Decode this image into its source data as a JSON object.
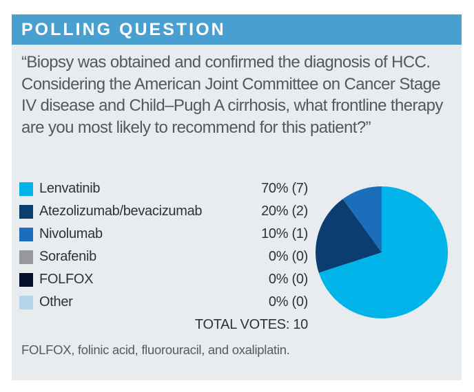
{
  "header": {
    "title": "POLLING QUESTION"
  },
  "question": "“Biopsy was obtained and confirmed the diagnosis of HCC. Considering the American Joint Committee on Cancer Stage IV disease and Child–Pugh A cirrhosis, what frontline therapy are you most likely to recommend for this patient?”",
  "legend": {
    "items": [
      {
        "label": "Lenvatinib",
        "value": "70% (7)",
        "color": "#00b3e8"
      },
      {
        "label": "Atezolizumab/bevacizumab",
        "value": "20% (2)",
        "color": "#0b3d70"
      },
      {
        "label": "Nivolumab",
        "value": "10% (1)",
        "color": "#1b6fba"
      },
      {
        "label": "Sorafenib",
        "value": "0% (0)",
        "color": "#96989b"
      },
      {
        "label": "FOLFOX",
        "value": "0% (0)",
        "color": "#05102e"
      },
      {
        "label": "Other",
        "value": "0% (0)",
        "color": "#b3d6e9"
      }
    ],
    "total_label": "TOTAL VOTES: 10"
  },
  "footnote": "FOLFOX, folinic acid, fluorouracil, and oxaliplatin.",
  "colors": {
    "header_bg": "#4a9fd1",
    "card_bg": "#e8ecef",
    "question_text": "#56575b"
  },
  "chart_data": {
    "type": "pie",
    "title": "POLLING QUESTION",
    "categories": [
      "Lenvatinib",
      "Atezolizumab/bevacizumab",
      "Nivolumab",
      "Sorafenib",
      "FOLFOX",
      "Other"
    ],
    "values": [
      70,
      20,
      10,
      0,
      0,
      0
    ],
    "counts": [
      7,
      2,
      1,
      0,
      0,
      0
    ],
    "total_votes": 10,
    "colors": [
      "#00b3e8",
      "#0b3d70",
      "#1b6fba",
      "#96989b",
      "#05102e",
      "#b3d6e9"
    ],
    "start_angle_deg": 0,
    "direction": "clockwise",
    "legend_position": "left"
  }
}
